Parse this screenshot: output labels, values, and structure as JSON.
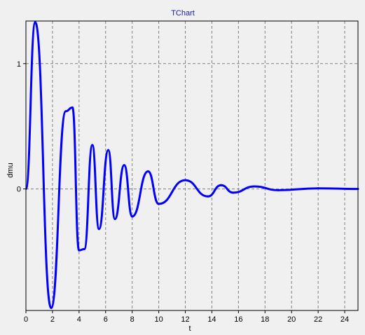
{
  "chart_data": {
    "type": "line",
    "title": "TChart",
    "xlabel": "t",
    "ylabel": "dmu",
    "xlim": [
      0,
      25
    ],
    "ylim": [
      -0.97,
      1.34
    ],
    "x_ticks": [
      "0",
      "2",
      "4",
      "6",
      "8",
      "10",
      "12",
      "14",
      "16",
      "18",
      "20",
      "22",
      "24"
    ],
    "y_ticks": [
      "0",
      "1"
    ],
    "x_tick_values": [
      0,
      2,
      4,
      6,
      8,
      10,
      12,
      14,
      16,
      18,
      20,
      22,
      24
    ],
    "y_tick_values": [
      0,
      1
    ],
    "grid": true,
    "legend": "none",
    "colors": {
      "series": "#0000ff",
      "title": "#1a1aa0",
      "grid": "#808080",
      "plot_background": "#f0f0f0",
      "frame": "#000000"
    },
    "series": [
      {
        "peaks": [
          {
            "x": 0.7,
            "y": 1.33
          },
          {
            "x": 1.9,
            "y": -0.95
          },
          {
            "x": 3.0,
            "y": 0.62
          },
          {
            "x": 3.5,
            "y": 0.65
          },
          {
            "x": 4.0,
            "y": -0.49
          },
          {
            "x": 4.4,
            "y": -0.48
          },
          {
            "x": 5.0,
            "y": 0.35
          },
          {
            "x": 5.5,
            "y": -0.32
          },
          {
            "x": 6.2,
            "y": 0.31
          },
          {
            "x": 6.7,
            "y": -0.24
          },
          {
            "x": 7.4,
            "y": 0.19
          },
          {
            "x": 8.0,
            "y": -0.22
          },
          {
            "x": 9.2,
            "y": 0.14
          },
          {
            "x": 10.0,
            "y": -0.12
          },
          {
            "x": 12.0,
            "y": 0.07
          },
          {
            "x": 13.7,
            "y": -0.06
          },
          {
            "x": 14.7,
            "y": 0.03
          },
          {
            "x": 15.6,
            "y": -0.03
          },
          {
            "x": 17.2,
            "y": 0.02
          },
          {
            "x": 19.0,
            "y": -0.01
          },
          {
            "x": 22.0,
            "y": 0.005
          },
          {
            "x": 25.0,
            "y": 0.0
          }
        ]
      }
    ]
  }
}
